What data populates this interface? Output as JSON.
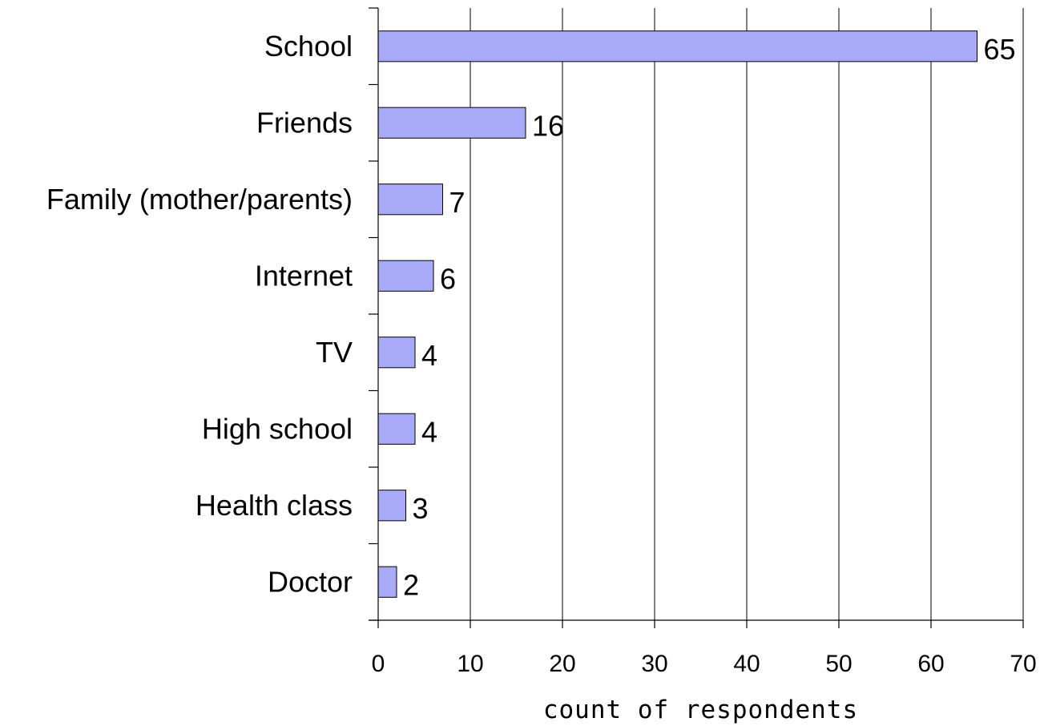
{
  "chart_data": {
    "type": "bar",
    "orientation": "horizontal",
    "categories": [
      "School",
      "Friends",
      "Family (mother/parents)",
      "Internet",
      "TV",
      "High school",
      "Health class",
      "Doctor"
    ],
    "values": [
      65,
      16,
      7,
      6,
      4,
      4,
      3,
      2
    ],
    "value_labels": [
      "65",
      "16",
      "7",
      "6",
      "4",
      "4",
      "3",
      "2"
    ],
    "title": "",
    "xlabel": "count of respondents",
    "ylabel": "",
    "xlim": [
      0,
      70
    ],
    "x_ticks": [
      0,
      10,
      20,
      30,
      40,
      50,
      60,
      70
    ],
    "x_tick_labels": [
      "0",
      "10",
      "20",
      "30",
      "40",
      "50",
      "60",
      "70"
    ],
    "grid": "vertical",
    "legend": "none",
    "colors": {
      "bar_fill": "#a8aaf8",
      "bar_stroke": "#000000",
      "grid": "#000000",
      "axis": "#000000"
    }
  }
}
